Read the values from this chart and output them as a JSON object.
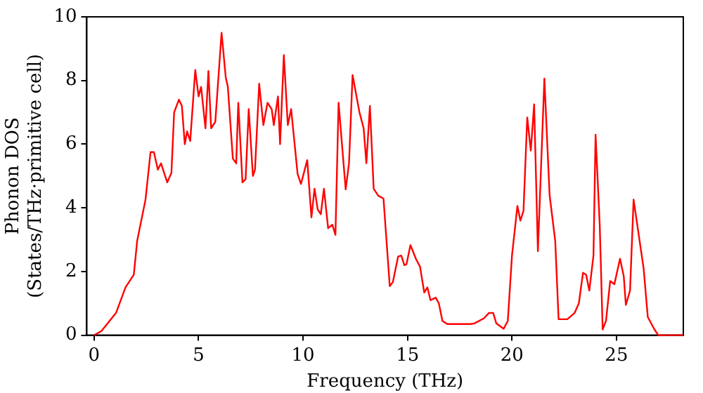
{
  "chart_data": {
    "type": "line",
    "xlabel": "Frequency (THz)",
    "ylabel": "Phonon DOS\n(States/THz·primitive cell)",
    "xlim": [
      -0.35,
      28.2
    ],
    "ylim": [
      0,
      10
    ],
    "xticks": [
      0,
      5,
      10,
      15,
      20,
      25
    ],
    "yticks": [
      0,
      2,
      4,
      6,
      8,
      10
    ],
    "grid": false,
    "legend": false,
    "marker": "none",
    "line_style": "solid",
    "series": [
      {
        "color": "#ff0000",
        "x": [
          0,
          0.35,
          1.05,
          1.5,
          1.9,
          2.06,
          2.46,
          2.7,
          2.86,
          3.05,
          3.2,
          3.5,
          3.7,
          3.83,
          4.06,
          4.2,
          4.34,
          4.45,
          4.6,
          4.84,
          5.0,
          5.12,
          5.33,
          5.47,
          5.6,
          5.8,
          6.1,
          6.3,
          6.4,
          6.64,
          6.8,
          6.9,
          7.1,
          7.25,
          7.4,
          7.6,
          7.7,
          7.9,
          8.1,
          8.3,
          8.5,
          8.6,
          8.8,
          8.9,
          9.08,
          9.27,
          9.43,
          9.74,
          9.9,
          10.2,
          10.4,
          10.55,
          10.7,
          10.85,
          11.0,
          11.2,
          11.4,
          11.55,
          11.7,
          12.04,
          12.2,
          12.37,
          12.7,
          12.9,
          13.03,
          13.2,
          13.38,
          13.6,
          13.85,
          14.15,
          14.3,
          14.55,
          14.7,
          14.85,
          14.95,
          15.14,
          15.4,
          15.6,
          15.8,
          15.95,
          16.1,
          16.35,
          16.5,
          16.67,
          16.9,
          18.0,
          18.2,
          18.66,
          18.9,
          19.1,
          19.25,
          19.6,
          19.8,
          20.0,
          20.26,
          20.4,
          20.55,
          20.73,
          20.9,
          21.06,
          21.24,
          21.55,
          21.8,
          22.07,
          22.23,
          22.65,
          23.0,
          23.2,
          23.4,
          23.55,
          23.7,
          23.9,
          24.0,
          24.2,
          24.34,
          24.5,
          24.7,
          24.9,
          25.17,
          25.35,
          25.45,
          25.65,
          25.82,
          26.0,
          26.3,
          26.5,
          26.8,
          27.0,
          28.2
        ],
        "values": [
          0,
          0.13,
          0.7,
          1.5,
          1.9,
          2.96,
          4.26,
          5.75,
          5.75,
          5.2,
          5.4,
          4.8,
          5.1,
          7.0,
          7.4,
          7.2,
          6.0,
          6.4,
          6.1,
          8.33,
          7.5,
          7.8,
          6.5,
          8.3,
          6.5,
          6.7,
          9.5,
          8.1,
          7.8,
          5.55,
          5.4,
          7.3,
          4.8,
          4.9,
          7.1,
          5.0,
          5.2,
          7.9,
          6.6,
          7.3,
          7.1,
          6.6,
          7.5,
          6.0,
          8.8,
          6.6,
          7.1,
          5.06,
          4.75,
          5.5,
          3.7,
          4.6,
          3.95,
          3.8,
          4.6,
          3.36,
          3.47,
          3.15,
          7.3,
          4.58,
          5.4,
          8.17,
          7.0,
          6.5,
          5.4,
          7.2,
          4.6,
          4.38,
          4.29,
          1.54,
          1.67,
          2.47,
          2.5,
          2.2,
          2.23,
          2.83,
          2.4,
          2.15,
          1.34,
          1.5,
          1.1,
          1.18,
          1.0,
          0.45,
          0.35,
          0.35,
          0.37,
          0.53,
          0.7,
          0.7,
          0.37,
          0.2,
          0.45,
          2.5,
          4.06,
          3.6,
          3.9,
          6.84,
          5.8,
          7.25,
          2.64,
          8.06,
          4.4,
          2.96,
          0.5,
          0.5,
          0.7,
          1.0,
          1.96,
          1.9,
          1.4,
          2.5,
          6.3,
          3.45,
          0.18,
          0.45,
          1.7,
          1.6,
          2.4,
          1.85,
          0.95,
          1.4,
          4.26,
          3.45,
          2.1,
          0.57,
          0.2,
          0,
          0
        ]
      }
    ]
  }
}
